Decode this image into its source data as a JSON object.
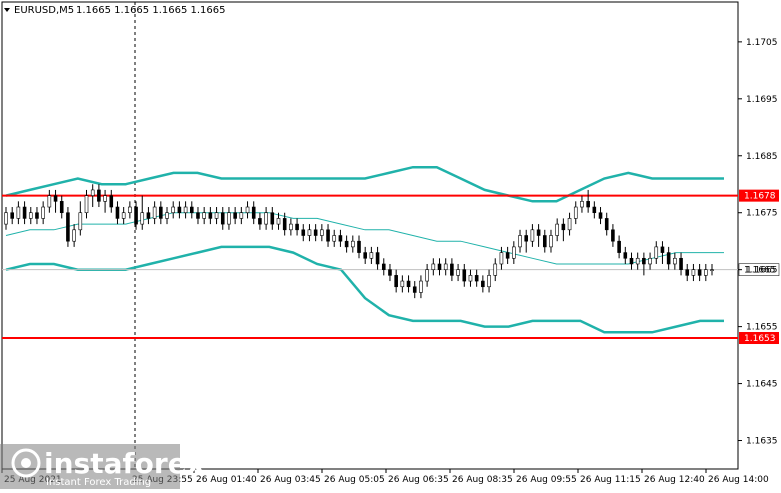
{
  "header": {
    "symbol": "EURUSD,M5",
    "ohlc": "1.1665 1.1665 1.1665 1.1665",
    "dropdown_icon": "triangle-down-icon"
  },
  "chart_data": {
    "type": "candlestick",
    "ylim": [
      1.163,
      1.1712
    ],
    "y_ticks": [
      "1.1705",
      "1.1695",
      "1.1685",
      "1.1675",
      "1.1665",
      "1.1655",
      "1.1645",
      "1.1635"
    ],
    "x_ticks": [
      "25 Aug 2021",
      "25 Aug 23:55",
      "26 Aug 01:40",
      "26 Aug 03:45",
      "26 Aug 05:05",
      "26 Aug 06:35",
      "26 Aug 08:35",
      "26 Aug 09:55",
      "26 Aug 11:15",
      "26 Aug 12:40",
      "26 Aug 14:00"
    ],
    "price_levels": [
      {
        "label": "1.1678",
        "value": 1.1678,
        "color": "#ff0000"
      },
      {
        "label": "1.1653",
        "value": 1.1653,
        "color": "#ff0000"
      },
      {
        "label": "1.1665",
        "value": 1.1665,
        "color": "#c0c0c0"
      }
    ],
    "current_price": "1.1665",
    "highlight_zone": {
      "from_index": 132,
      "to_index": 148,
      "top": 1.1678,
      "bottom": 1.16535,
      "color": "#2e8b8b"
    },
    "bollinger": {
      "upper": [
        1.1678,
        1.1679,
        1.168,
        1.1681,
        1.168,
        1.168,
        1.1681,
        1.1682,
        1.1682,
        1.1681,
        1.1681,
        1.1681,
        1.1681,
        1.1681,
        1.1681,
        1.1681,
        1.1682,
        1.1683,
        1.1683,
        1.1681,
        1.1679,
        1.1678,
        1.1677,
        1.1677,
        1.1679,
        1.1681,
        1.1682,
        1.1681,
        1.1681,
        1.1681,
        1.1681
      ],
      "middle": [
        1.1671,
        1.1672,
        1.1672,
        1.1673,
        1.1673,
        1.1673,
        1.1674,
        1.1675,
        1.1675,
        1.1675,
        1.1675,
        1.1675,
        1.1674,
        1.1674,
        1.1673,
        1.1672,
        1.1672,
        1.1671,
        1.167,
        1.167,
        1.1669,
        1.1668,
        1.1667,
        1.1666,
        1.1666,
        1.1666,
        1.1666,
        1.1667,
        1.1668,
        1.1668,
        1.1668
      ],
      "lower": [
        1.1665,
        1.1666,
        1.1666,
        1.1665,
        1.1665,
        1.1665,
        1.1666,
        1.1667,
        1.1668,
        1.1669,
        1.1669,
        1.1669,
        1.1668,
        1.1666,
        1.1665,
        1.166,
        1.1657,
        1.1656,
        1.1656,
        1.1656,
        1.1655,
        1.1655,
        1.1656,
        1.1656,
        1.1656,
        1.1654,
        1.1654,
        1.1654,
        1.1655,
        1.1656,
        1.1656
      ]
    },
    "candles": [
      [
        1.1673,
        1.1675,
        1.1676,
        1.1672
      ],
      [
        1.1675,
        1.1674,
        1.1676,
        1.1673
      ],
      [
        1.1674,
        1.1676,
        1.1677,
        1.1673
      ],
      [
        1.1676,
        1.1674,
        1.1677,
        1.1673
      ],
      [
        1.1674,
        1.1675,
        1.1676,
        1.1673
      ],
      [
        1.1675,
        1.1674,
        1.1676,
        1.1673
      ],
      [
        1.1674,
        1.1676,
        1.1677,
        1.1673
      ],
      [
        1.1676,
        1.1678,
        1.1679,
        1.1675
      ],
      [
        1.1678,
        1.1677,
        1.1679,
        1.1675
      ],
      [
        1.1677,
        1.1675,
        1.1678,
        1.1674
      ],
      [
        1.1675,
        1.167,
        1.1676,
        1.1669
      ],
      [
        1.167,
        1.1672,
        1.1673,
        1.1669
      ],
      [
        1.1672,
        1.1675,
        1.1677,
        1.1671
      ],
      [
        1.1675,
        1.1678,
        1.1679,
        1.1674
      ],
      [
        1.1678,
        1.1679,
        1.168,
        1.1676
      ],
      [
        1.1679,
        1.1677,
        1.168,
        1.1676
      ],
      [
        1.1677,
        1.1678,
        1.1679,
        1.1675
      ],
      [
        1.1678,
        1.1676,
        1.1679,
        1.1675
      ],
      [
        1.1676,
        1.1674,
        1.1677,
        1.1673
      ],
      [
        1.1674,
        1.1675,
        1.1676,
        1.1673
      ],
      [
        1.1675,
        1.1676,
        1.1677,
        1.1674
      ],
      [
        1.1676,
        1.1673,
        1.1677,
        1.1672
      ],
      [
        1.1673,
        1.1675,
        1.1678,
        1.1672
      ],
      [
        1.1675,
        1.1674,
        1.1676,
        1.1673
      ],
      [
        1.1674,
        1.1676,
        1.1677,
        1.1673
      ],
      [
        1.1676,
        1.1674,
        1.1677,
        1.1673
      ],
      [
        1.1674,
        1.1675,
        1.1676,
        1.1673
      ],
      [
        1.1675,
        1.1676,
        1.1677,
        1.1674
      ],
      [
        1.1676,
        1.1675,
        1.1677,
        1.1674
      ],
      [
        1.1675,
        1.1676,
        1.1677,
        1.1674
      ],
      [
        1.1676,
        1.1675,
        1.1677,
        1.1674
      ],
      [
        1.1675,
        1.1674,
        1.1676,
        1.1673
      ],
      [
        1.1674,
        1.1675,
        1.1676,
        1.1673
      ],
      [
        1.1675,
        1.1674,
        1.1676,
        1.1673
      ],
      [
        1.1674,
        1.1675,
        1.1676,
        1.1673
      ],
      [
        1.1675,
        1.1673,
        1.1676,
        1.1672
      ],
      [
        1.1673,
        1.1675,
        1.1676,
        1.1672
      ],
      [
        1.1675,
        1.1674,
        1.1676,
        1.1673
      ],
      [
        1.1674,
        1.1675,
        1.1676,
        1.1673
      ],
      [
        1.1675,
        1.1676,
        1.1677,
        1.1674
      ],
      [
        1.1676,
        1.1674,
        1.1677,
        1.1673
      ],
      [
        1.1674,
        1.1673,
        1.1675,
        1.1672
      ],
      [
        1.1673,
        1.1675,
        1.1676,
        1.1672
      ],
      [
        1.1675,
        1.1673,
        1.1676,
        1.1672
      ],
      [
        1.1673,
        1.1674,
        1.1675,
        1.1672
      ],
      [
        1.1674,
        1.1672,
        1.1675,
        1.1671
      ],
      [
        1.1672,
        1.1673,
        1.1674,
        1.1671
      ],
      [
        1.1673,
        1.1672,
        1.1674,
        1.1671
      ],
      [
        1.1672,
        1.1671,
        1.1673,
        1.167
      ],
      [
        1.1671,
        1.1672,
        1.1673,
        1.167
      ],
      [
        1.1672,
        1.1671,
        1.1673,
        1.167
      ],
      [
        1.1671,
        1.1672,
        1.1673,
        1.167
      ],
      [
        1.1672,
        1.167,
        1.1673,
        1.1669
      ],
      [
        1.167,
        1.1671,
        1.1672,
        1.1669
      ],
      [
        1.1671,
        1.167,
        1.1672,
        1.1669
      ],
      [
        1.167,
        1.1669,
        1.1671,
        1.1668
      ],
      [
        1.1669,
        1.167,
        1.1671,
        1.1668
      ],
      [
        1.167,
        1.1668,
        1.1671,
        1.1667
      ],
      [
        1.1668,
        1.1667,
        1.1669,
        1.1666
      ],
      [
        1.1667,
        1.1668,
        1.1669,
        1.1666
      ],
      [
        1.1668,
        1.1666,
        1.1669,
        1.1665
      ],
      [
        1.1666,
        1.1665,
        1.1667,
        1.1664
      ],
      [
        1.1665,
        1.1664,
        1.1666,
        1.1663
      ],
      [
        1.1664,
        1.1662,
        1.1665,
        1.1661
      ],
      [
        1.1662,
        1.1663,
        1.1664,
        1.1661
      ],
      [
        1.1663,
        1.1662,
        1.1664,
        1.1661
      ],
      [
        1.1662,
        1.1661,
        1.1663,
        1.166
      ],
      [
        1.1661,
        1.1663,
        1.1664,
        1.166
      ],
      [
        1.1663,
        1.1665,
        1.1666,
        1.1662
      ],
      [
        1.1665,
        1.1666,
        1.1667,
        1.1664
      ],
      [
        1.1666,
        1.1665,
        1.1667,
        1.1664
      ],
      [
        1.1665,
        1.1666,
        1.1667,
        1.1664
      ],
      [
        1.1666,
        1.1664,
        1.1667,
        1.1663
      ],
      [
        1.1664,
        1.1665,
        1.1666,
        1.1663
      ],
      [
        1.1665,
        1.1663,
        1.1666,
        1.1662
      ],
      [
        1.1663,
        1.1664,
        1.1665,
        1.1662
      ],
      [
        1.1664,
        1.1663,
        1.1665,
        1.1662
      ],
      [
        1.1663,
        1.1662,
        1.1664,
        1.1661
      ],
      [
        1.1662,
        1.1664,
        1.1665,
        1.1661
      ],
      [
        1.1664,
        1.1666,
        1.1667,
        1.1663
      ],
      [
        1.1666,
        1.1668,
        1.1669,
        1.1665
      ],
      [
        1.1668,
        1.1667,
        1.1669,
        1.1666
      ],
      [
        1.1667,
        1.1669,
        1.167,
        1.1666
      ],
      [
        1.1669,
        1.1671,
        1.1672,
        1.1668
      ],
      [
        1.1671,
        1.167,
        1.1672,
        1.1668
      ],
      [
        1.167,
        1.1672,
        1.1673,
        1.1669
      ],
      [
        1.1672,
        1.1671,
        1.1673,
        1.1669
      ],
      [
        1.1671,
        1.1669,
        1.1672,
        1.1668
      ],
      [
        1.1669,
        1.1671,
        1.1672,
        1.1668
      ],
      [
        1.1671,
        1.1673,
        1.1674,
        1.167
      ],
      [
        1.1673,
        1.1672,
        1.1674,
        1.167
      ],
      [
        1.1672,
        1.1674,
        1.1675,
        1.1671
      ],
      [
        1.1674,
        1.1676,
        1.1677,
        1.1673
      ],
      [
        1.1676,
        1.1677,
        1.1678,
        1.1675
      ],
      [
        1.1677,
        1.1676,
        1.1679,
        1.1675
      ],
      [
        1.1676,
        1.1675,
        1.1677,
        1.1674
      ],
      [
        1.1675,
        1.1674,
        1.1676,
        1.1673
      ],
      [
        1.1674,
        1.1672,
        1.1675,
        1.1671
      ],
      [
        1.1672,
        1.167,
        1.1673,
        1.1669
      ],
      [
        1.167,
        1.1668,
        1.1671,
        1.1667
      ],
      [
        1.1668,
        1.1667,
        1.1669,
        1.1666
      ],
      [
        1.1667,
        1.1666,
        1.1668,
        1.1665
      ],
      [
        1.1666,
        1.1667,
        1.1668,
        1.1665
      ],
      [
        1.1667,
        1.1666,
        1.1668,
        1.1664
      ],
      [
        1.1666,
        1.1667,
        1.1668,
        1.1665
      ],
      [
        1.1667,
        1.1669,
        1.167,
        1.1666
      ],
      [
        1.1669,
        1.1668,
        1.167,
        1.1666
      ],
      [
        1.1668,
        1.1666,
        1.1669,
        1.1665
      ],
      [
        1.1666,
        1.1667,
        1.1668,
        1.1665
      ],
      [
        1.1667,
        1.1665,
        1.1668,
        1.1664
      ],
      [
        1.1665,
        1.1664,
        1.1666,
        1.1663
      ],
      [
        1.1664,
        1.1665,
        1.1666,
        1.1663
      ],
      [
        1.1665,
        1.1664,
        1.1666,
        1.1663
      ],
      [
        1.1664,
        1.1665,
        1.1666,
        1.1663
      ],
      [
        1.1665,
        1.1665,
        1.1666,
        1.1664
      ]
    ],
    "visible_text": [
      "EURUSD,M5",
      "1.1665 1.1665 1.1665 1.1665"
    ]
  },
  "watermark": {
    "brand": "instaforex",
    "tagline": "Instant Forex Trading"
  },
  "colors": {
    "background": "#ffffff",
    "candle": "#000000",
    "band": "#20b2aa",
    "level": "#ff0000",
    "zone": "#2e8b8b",
    "current_line": "#c0c0c0",
    "label_bg_red": "#ff0000",
    "label_bg_current": "#ffffff"
  }
}
